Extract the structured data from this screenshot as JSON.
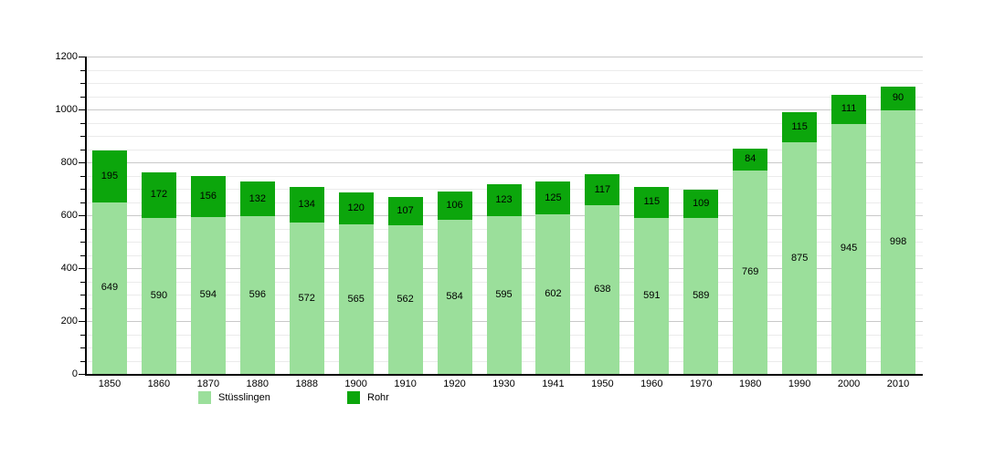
{
  "chart_data": {
    "type": "bar",
    "stacked": true,
    "title": "",
    "xlabel": "",
    "ylabel": "",
    "categories": [
      "1850",
      "1860",
      "1870",
      "1880",
      "1888",
      "1900",
      "1910",
      "1920",
      "1930",
      "1941",
      "1950",
      "1960",
      "1970",
      "1980",
      "1990",
      "2000",
      "2010"
    ],
    "series": [
      {
        "name": "Stüsslingen",
        "color": "#9bdf9b",
        "values": [
          649,
          590,
          594,
          596,
          572,
          565,
          562,
          584,
          595,
          602,
          638,
          591,
          589,
          769,
          875,
          945,
          998
        ]
      },
      {
        "name": "Rohr",
        "color": "#0ca60c",
        "values": [
          195,
          172,
          156,
          132,
          134,
          120,
          107,
          106,
          123,
          125,
          117,
          115,
          109,
          84,
          115,
          111,
          90
        ]
      }
    ],
    "totals": [
      844,
      762,
      750,
      728,
      706,
      685,
      669,
      690,
      718,
      727,
      755,
      706,
      698,
      853,
      990,
      1056,
      1088
    ],
    "ylim": [
      0,
      1200
    ],
    "y_major_step": 200,
    "y_minor_step": 50,
    "y_tick_labels": [
      "0",
      "200",
      "400",
      "600",
      "800",
      "1000",
      "1200"
    ],
    "grid": true,
    "legend_position": "bottom",
    "value_labels": "centered-in-segment"
  },
  "colors": {
    "background": "#ffffff",
    "axis": "#000000",
    "grid_major": "#c9c9c9",
    "grid_minor": "#ebebeb",
    "label_text": "#000000"
  },
  "legend": {
    "items": [
      {
        "label": "Stüsslingen",
        "color": "#9bdf9b"
      },
      {
        "label": "Rohr",
        "color": "#0ca60c"
      }
    ]
  }
}
